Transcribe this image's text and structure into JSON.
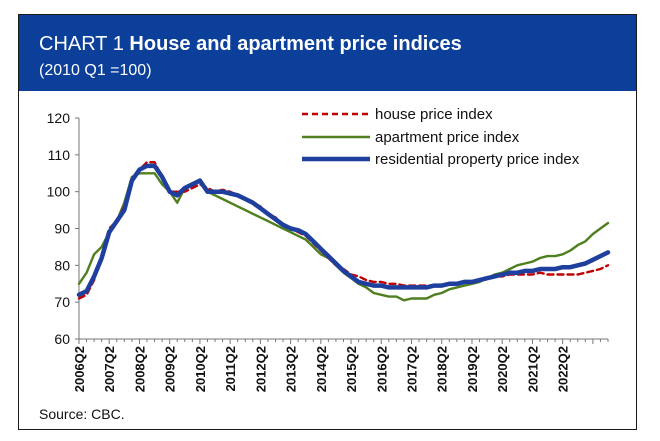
{
  "header": {
    "title_prefix": "CHART 1",
    "title_main": "House and apartment price indices",
    "subtitle": "(2010 Q1 =100)"
  },
  "source": "Source: CBC.",
  "colors": {
    "header_bg": "#0b3f9a",
    "house": "#c00000",
    "apartment": "#4f7f1e",
    "residential": "#1f3f9f"
  },
  "chart_data": {
    "type": "line",
    "title": "House and apartment price indices",
    "subtitle": "(2010 Q1 =100)",
    "xlabel": "",
    "ylabel": "",
    "ylim": [
      60,
      120
    ],
    "yticks": [
      60,
      70,
      80,
      90,
      100,
      110,
      120
    ],
    "x_start": "2006Q2",
    "x_tick_labels": [
      "2006Q2",
      "2007Q2",
      "2008Q2",
      "2009Q2",
      "2010Q2",
      "2011Q2",
      "2012Q2",
      "2013Q2",
      "2014Q2",
      "2015Q2",
      "2016Q2",
      "2017Q2",
      "2018Q2",
      "2019Q2",
      "2020Q2",
      "2021Q2",
      "2022Q2"
    ],
    "legend_position": "top-right",
    "grid": false,
    "series": [
      {
        "name": "house price index",
        "style": "dashed",
        "values": [
          71,
          72,
          76,
          83,
          90,
          92,
          96,
          103,
          106,
          108,
          108,
          104,
          100,
          100,
          100,
          101,
          102,
          101,
          100,
          100.5,
          100,
          99,
          98,
          97,
          96,
          94,
          93,
          91,
          90,
          89,
          88,
          86,
          84,
          82,
          80,
          79,
          77.5,
          77,
          76,
          75.5,
          75.5,
          75,
          75,
          74.5,
          74.5,
          74.5,
          74.5,
          74.5,
          74.5,
          75,
          75,
          75.5,
          75.5,
          76,
          76.5,
          77,
          77,
          77.5,
          77.5,
          77.5,
          77.5,
          78,
          77.5,
          77.5,
          77.5,
          77.5,
          77.5,
          78,
          78.5,
          79,
          80
        ]
      },
      {
        "name": "apartment price index",
        "style": "solid",
        "values": [
          75,
          78,
          83,
          85,
          89,
          92,
          97,
          104,
          105,
          105,
          105,
          102,
          100,
          97,
          101,
          102,
          103,
          100,
          99,
          98,
          97,
          96,
          95,
          94,
          93,
          92,
          91,
          90,
          89,
          88,
          87,
          85,
          83,
          82,
          80,
          78,
          76.5,
          75,
          74,
          72.5,
          72,
          71.5,
          71.5,
          70.5,
          71,
          71,
          71,
          72,
          72.5,
          73.5,
          74,
          74.5,
          75,
          75.5,
          76.5,
          77.5,
          78,
          79,
          80,
          80.5,
          81,
          82,
          82.5,
          82.5,
          83,
          84,
          85.5,
          86.5,
          88.5,
          90,
          91.5
        ]
      },
      {
        "name": "residential property price index",
        "style": "thick",
        "values": [
          72,
          73,
          77,
          82,
          89,
          92,
          95,
          103,
          106,
          107,
          107,
          104,
          100,
          99,
          101,
          102,
          103,
          100,
          100,
          100,
          99.5,
          99,
          98,
          97,
          95.5,
          94,
          92.5,
          91,
          90,
          89.5,
          88.5,
          86.5,
          84.5,
          82.5,
          80.5,
          78.5,
          77,
          75.5,
          75,
          74.5,
          74.5,
          74,
          74,
          74,
          74,
          74,
          74,
          74.5,
          74.5,
          75,
          75,
          75.5,
          75.5,
          76,
          76.5,
          77,
          77.5,
          78,
          78,
          78.5,
          78.5,
          79,
          79,
          79,
          79.5,
          79.5,
          80,
          80.5,
          81.5,
          82.5,
          83.5
        ]
      }
    ]
  }
}
